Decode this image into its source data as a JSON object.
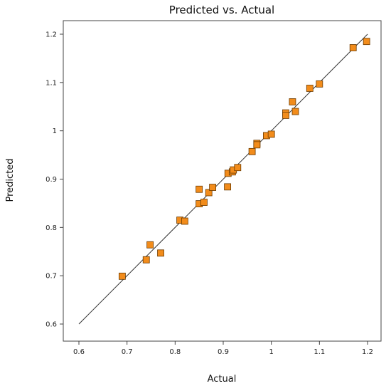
{
  "chart_data": {
    "type": "scatter",
    "title": "Predicted vs. Actual",
    "xlabel": "Actual",
    "ylabel": "Predicted",
    "xlim": [
      0.6,
      1.2
    ],
    "ylim": [
      0.6,
      1.2
    ],
    "x_ticks": [
      "0.6",
      "0.7",
      "0.8",
      "0.9",
      "1",
      "1.1",
      "1.2"
    ],
    "y_ticks": [
      "0.6",
      "0.7",
      "0.8",
      "0.9",
      "1",
      "1.1",
      "1.2"
    ],
    "grid": false,
    "reference_line": {
      "x": [
        0.6,
        1.2
      ],
      "y": [
        0.6,
        1.2
      ]
    },
    "marker_color": "#f28c1b",
    "marker_edge_color": "#6b3a00",
    "points": [
      {
        "x": 0.69,
        "y": 0.699
      },
      {
        "x": 0.74,
        "y": 0.733
      },
      {
        "x": 0.748,
        "y": 0.764
      },
      {
        "x": 0.77,
        "y": 0.747
      },
      {
        "x": 0.81,
        "y": 0.815
      },
      {
        "x": 0.82,
        "y": 0.813
      },
      {
        "x": 0.85,
        "y": 0.879
      },
      {
        "x": 0.85,
        "y": 0.849
      },
      {
        "x": 0.86,
        "y": 0.852
      },
      {
        "x": 0.87,
        "y": 0.872
      },
      {
        "x": 0.878,
        "y": 0.883
      },
      {
        "x": 0.909,
        "y": 0.884
      },
      {
        "x": 0.91,
        "y": 0.912
      },
      {
        "x": 0.919,
        "y": 0.915
      },
      {
        "x": 0.921,
        "y": 0.919
      },
      {
        "x": 0.93,
        "y": 0.924
      },
      {
        "x": 0.96,
        "y": 0.957
      },
      {
        "x": 0.97,
        "y": 0.974
      },
      {
        "x": 0.97,
        "y": 0.971
      },
      {
        "x": 0.99,
        "y": 0.99
      },
      {
        "x": 1.0,
        "y": 0.993
      },
      {
        "x": 1.03,
        "y": 1.037
      },
      {
        "x": 1.03,
        "y": 1.032
      },
      {
        "x": 1.044,
        "y": 1.06
      },
      {
        "x": 1.05,
        "y": 1.04
      },
      {
        "x": 1.08,
        "y": 1.088
      },
      {
        "x": 1.1,
        "y": 1.097
      },
      {
        "x": 1.17,
        "y": 1.172
      },
      {
        "x": 1.198,
        "y": 1.185
      }
    ]
  }
}
